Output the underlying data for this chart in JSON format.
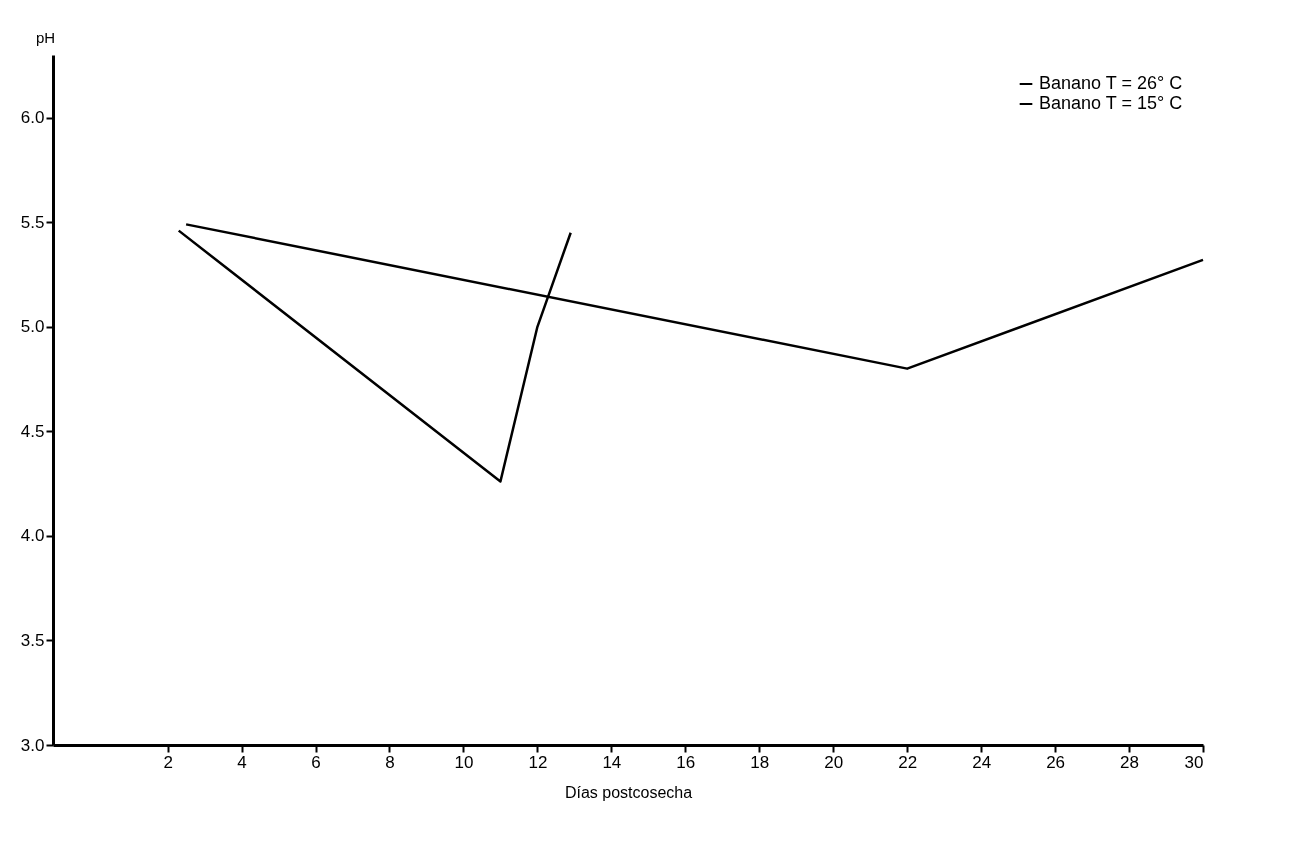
{
  "chart_data": {
    "type": "line",
    "xlabel": "Días postcosecha",
    "ylabel": "pH",
    "xlim": [
      -1.1,
      30
    ],
    "xticks": [
      2,
      4,
      6,
      8,
      10,
      12,
      14,
      16,
      18,
      20,
      22,
      24,
      26,
      28,
      30
    ],
    "ylim": [
      3,
      6.3
    ],
    "yticks": [
      {
        "value": 3,
        "label": "3.0"
      },
      {
        "value": 3.5,
        "label": "3.5"
      },
      {
        "value": 4,
        "label": "4.0"
      },
      {
        "value": 4.5,
        "label": "4.5"
      },
      {
        "value": 5,
        "label": "5.0"
      },
      {
        "value": 5.5,
        "label": "5.5"
      },
      {
        "value": 6,
        "label": "6.0"
      }
    ],
    "grid": false,
    "legend": "top right",
    "line_style": "solid",
    "series": [
      {
        "name": "Banano T = 26° C",
        "color": "#000000",
        "x": [
          2.3,
          11,
          12,
          12.9
        ],
        "values": [
          5.46,
          4.26,
          5.0,
          5.45
        ]
      },
      {
        "name": "Banano T = 15° C",
        "color": "#000000",
        "x": [
          2.5,
          22,
          30
        ],
        "values": [
          5.49,
          4.8,
          5.32
        ]
      }
    ]
  }
}
